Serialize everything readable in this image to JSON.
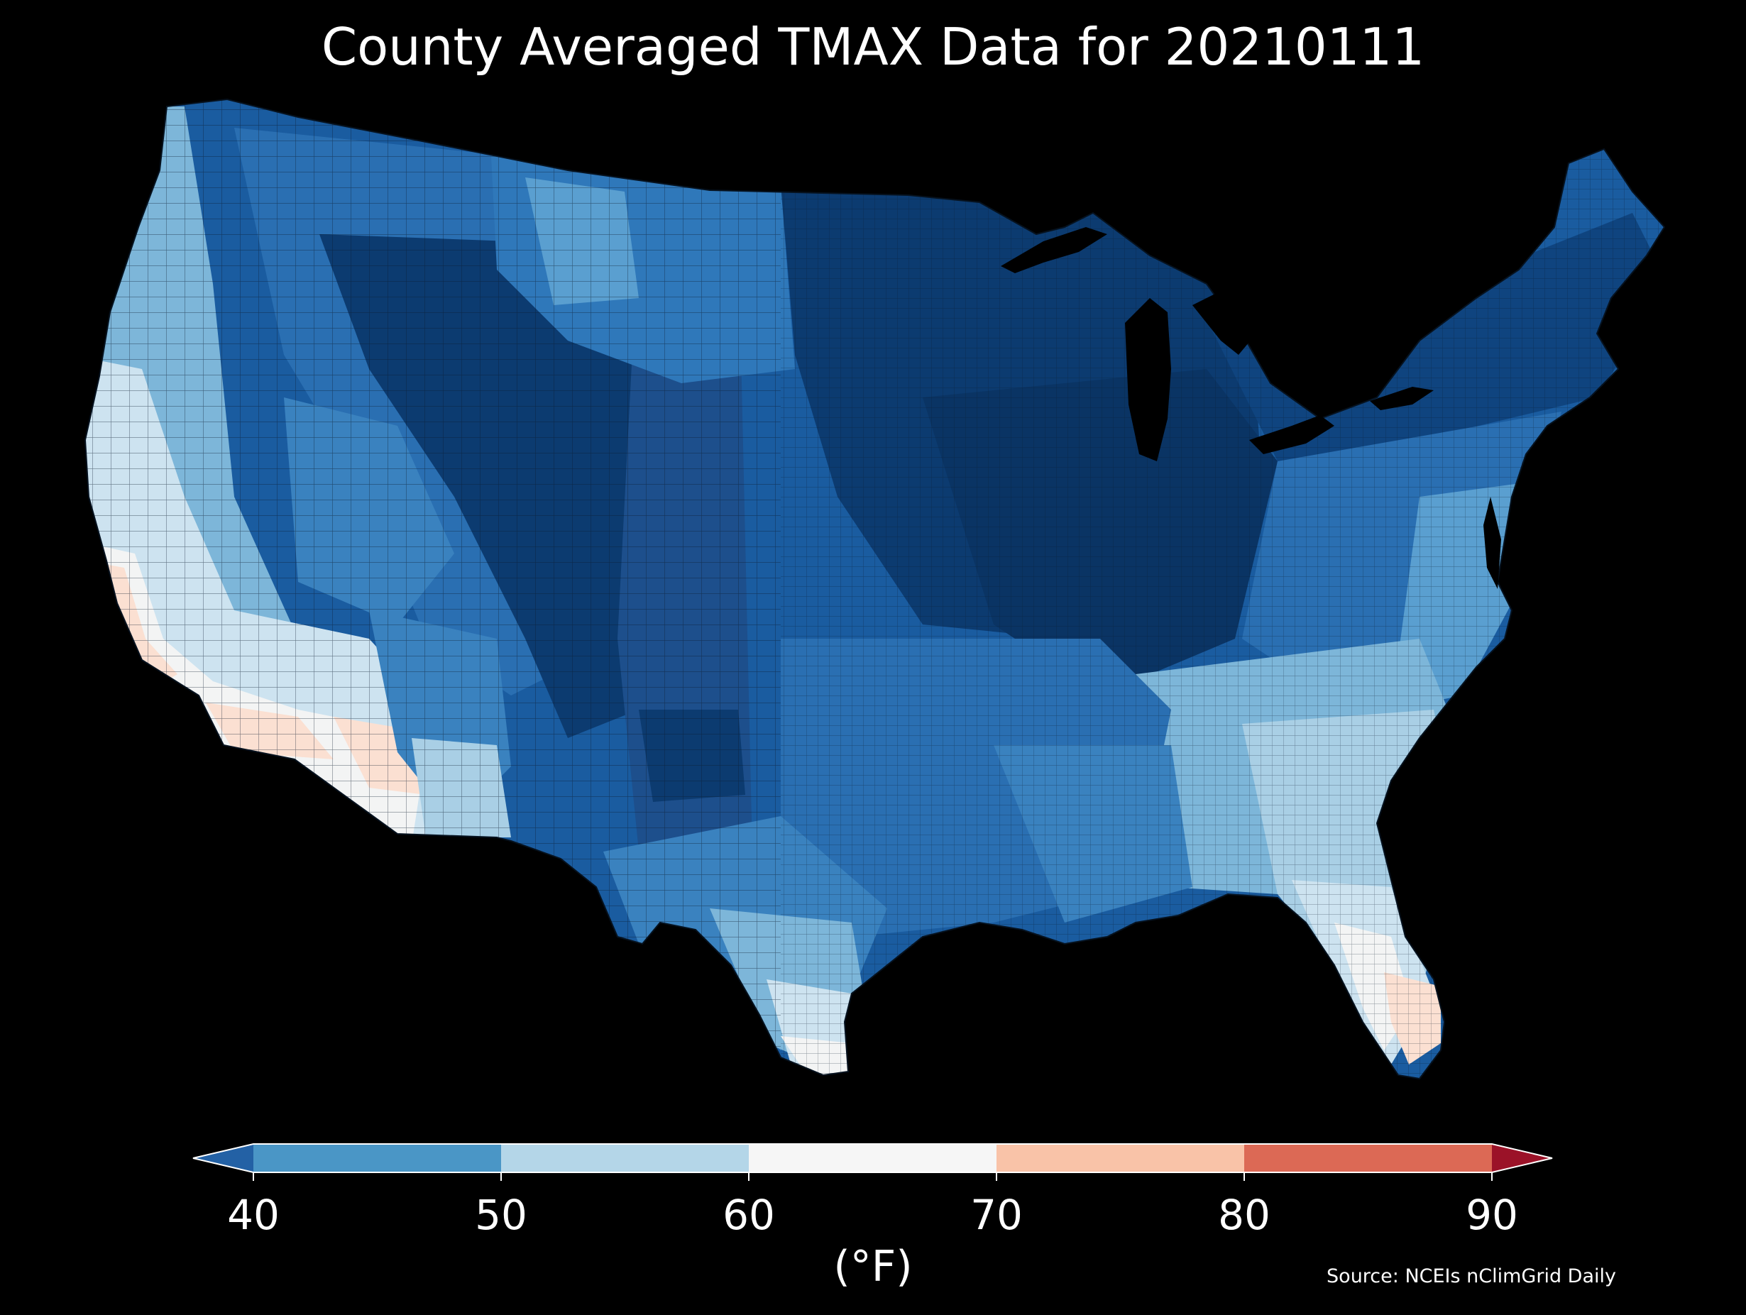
{
  "title": "County Averaged TMAX Data for 20210111",
  "source": "Source: NCEIs nClimGrid Daily",
  "colorbar": {
    "unit_label": "(°F)",
    "ticks": [
      "40",
      "50",
      "60",
      "70",
      "80",
      "90"
    ],
    "bins": [
      {
        "from": 40,
        "to": 50,
        "color": "#4a96c6"
      },
      {
        "from": 50,
        "to": 60,
        "color": "#b4d6e8"
      },
      {
        "from": 60,
        "to": 70,
        "color": "#f6f6f6"
      },
      {
        "from": 70,
        "to": 80,
        "color": "#f9c3a8"
      },
      {
        "from": 80,
        "to": 90,
        "color": "#dc6955"
      }
    ],
    "under_color": "#2361a5",
    "over_color": "#9b1228",
    "extend": "both"
  },
  "map": {
    "subject": "Contiguous United States county-level choropleth",
    "variable": "TMAX",
    "units": "°F",
    "palette": {
      "very_cold": "#0c3b70",
      "cold": "#1a5ca0",
      "cool": "#3a82bf",
      "mild_cool": "#7db6d9",
      "mild": "#cde3f0",
      "neutral": "#f3f4f4",
      "warm": "#fbe0d2"
    }
  }
}
